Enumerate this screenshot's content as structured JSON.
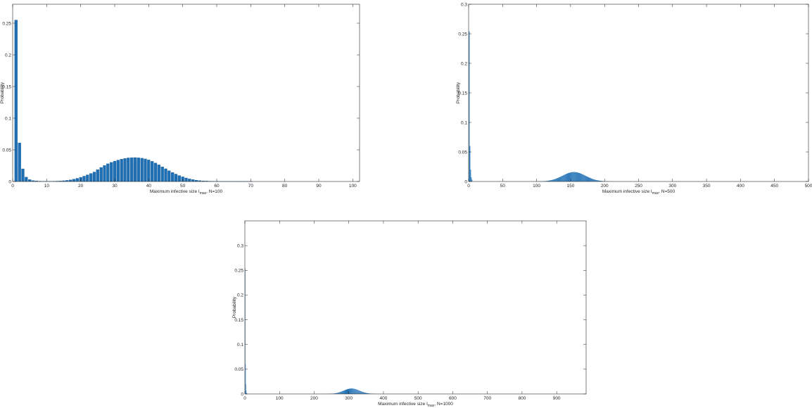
{
  "colors": {
    "bar": "#1f6fb4",
    "bar_edge": "#14578f",
    "axis": "#262626"
  },
  "chart_data": [
    {
      "type": "bar",
      "xlabel_main": "Maximum infective size I",
      "xlabel_sub": "max",
      "xlabel_tail": ", N=100",
      "ylabel": "Probability",
      "xlim": [
        0,
        102
      ],
      "ylim": [
        0,
        0.28
      ],
      "xticks": [
        0,
        10,
        20,
        30,
        40,
        50,
        60,
        70,
        80,
        90,
        100
      ],
      "yticks": [
        0,
        0.05,
        0.1,
        0.15,
        0.2,
        0.25
      ],
      "ytick_labels": [
        "0",
        "0.05",
        "0.1",
        "0.15",
        "0.2",
        "0.25"
      ],
      "x": [
        1,
        2,
        3,
        4,
        5,
        6,
        7,
        8,
        9,
        10,
        11,
        12,
        13,
        14,
        15,
        16,
        17,
        18,
        19,
        20,
        21,
        22,
        23,
        24,
        25,
        26,
        27,
        28,
        29,
        30,
        31,
        32,
        33,
        34,
        35,
        36,
        37,
        38,
        39,
        40,
        41,
        42,
        43,
        44,
        45,
        46,
        47,
        48,
        49,
        50,
        51,
        52,
        53,
        54,
        55,
        56,
        57,
        58,
        59,
        60,
        61,
        62,
        63,
        64,
        65,
        66,
        67,
        68,
        69,
        70
      ],
      "values": [
        0.255,
        0.061,
        0.02,
        0.007,
        0.003,
        0.0015,
        0.001,
        0.0005,
        0.0004,
        0.0003,
        0.0003,
        0.0004,
        0.0006,
        0.0008,
        0.0012,
        0.0018,
        0.0026,
        0.0037,
        0.005,
        0.0066,
        0.0084,
        0.0105,
        0.0127,
        0.015,
        0.0188,
        0.0222,
        0.0253,
        0.028,
        0.0302,
        0.0322,
        0.0338,
        0.0353,
        0.0365,
        0.0373,
        0.0377,
        0.0378,
        0.0375,
        0.0368,
        0.0357,
        0.0341,
        0.0319,
        0.0292,
        0.0263,
        0.0232,
        0.0201,
        0.0171,
        0.0143,
        0.0117,
        0.0094,
        0.0074,
        0.0056,
        0.0042,
        0.003,
        0.0021,
        0.0015,
        0.001,
        0.0007,
        0.0005,
        0.0003,
        0.0002,
        0.00015,
        0.0001,
        0.0001,
        8e-05,
        6e-05,
        5e-05,
        4e-05,
        3e-05,
        2e-05,
        1e-05
      ]
    },
    {
      "type": "bar",
      "xlabel_main": "Maximum infective size I",
      "xlabel_sub": "max",
      "xlabel_tail": ", N=500",
      "ylabel": "Probability",
      "xlim": [
        0,
        500
      ],
      "ylim": [
        0,
        0.3
      ],
      "xticks": [
        0,
        50,
        100,
        150,
        200,
        250,
        300,
        350,
        400,
        450,
        500
      ],
      "yticks": [
        0,
        0.05,
        0.1,
        0.15,
        0.2,
        0.25,
        0.3
      ],
      "ytick_labels": [
        "0",
        "0.05",
        "0.1",
        "0.15",
        "0.2",
        "0.25",
        "0.3"
      ],
      "spikes": [
        {
          "x": 1,
          "y": 0.254
        },
        {
          "x": 2,
          "y": 0.06
        },
        {
          "x": 3,
          "y": 0.02
        },
        {
          "x": 4,
          "y": 0.007
        },
        {
          "x": 5,
          "y": 0.003
        }
      ],
      "bump": {
        "center": 155,
        "sigma": 17,
        "peak": 0.016,
        "from": 100,
        "to": 215
      }
    },
    {
      "type": "bar",
      "xlabel_main": "Maximum infective size I",
      "xlabel_sub": "max",
      "xlabel_tail": ", N=1000",
      "ylabel": "Probability",
      "xlim": [
        0,
        985
      ],
      "ylim": [
        0,
        0.35
      ],
      "xticks": [
        0,
        100,
        200,
        300,
        400,
        500,
        600,
        700,
        800,
        900
      ],
      "yticks": [
        0,
        0.05,
        0.1,
        0.15,
        0.2,
        0.25,
        0.3
      ],
      "ytick_labels": [
        "0",
        "0.05",
        "0.1",
        "0.15",
        "0.2",
        "0.25",
        "0.3"
      ],
      "spikes": [
        {
          "x": 1,
          "y": 0.254
        },
        {
          "x": 2,
          "y": 0.06
        },
        {
          "x": 3,
          "y": 0.02
        },
        {
          "x": 4,
          "y": 0.007
        },
        {
          "x": 5,
          "y": 0.003
        }
      ],
      "bump": {
        "center": 308,
        "sigma": 23,
        "peak": 0.011,
        "from": 230,
        "to": 390
      }
    }
  ]
}
